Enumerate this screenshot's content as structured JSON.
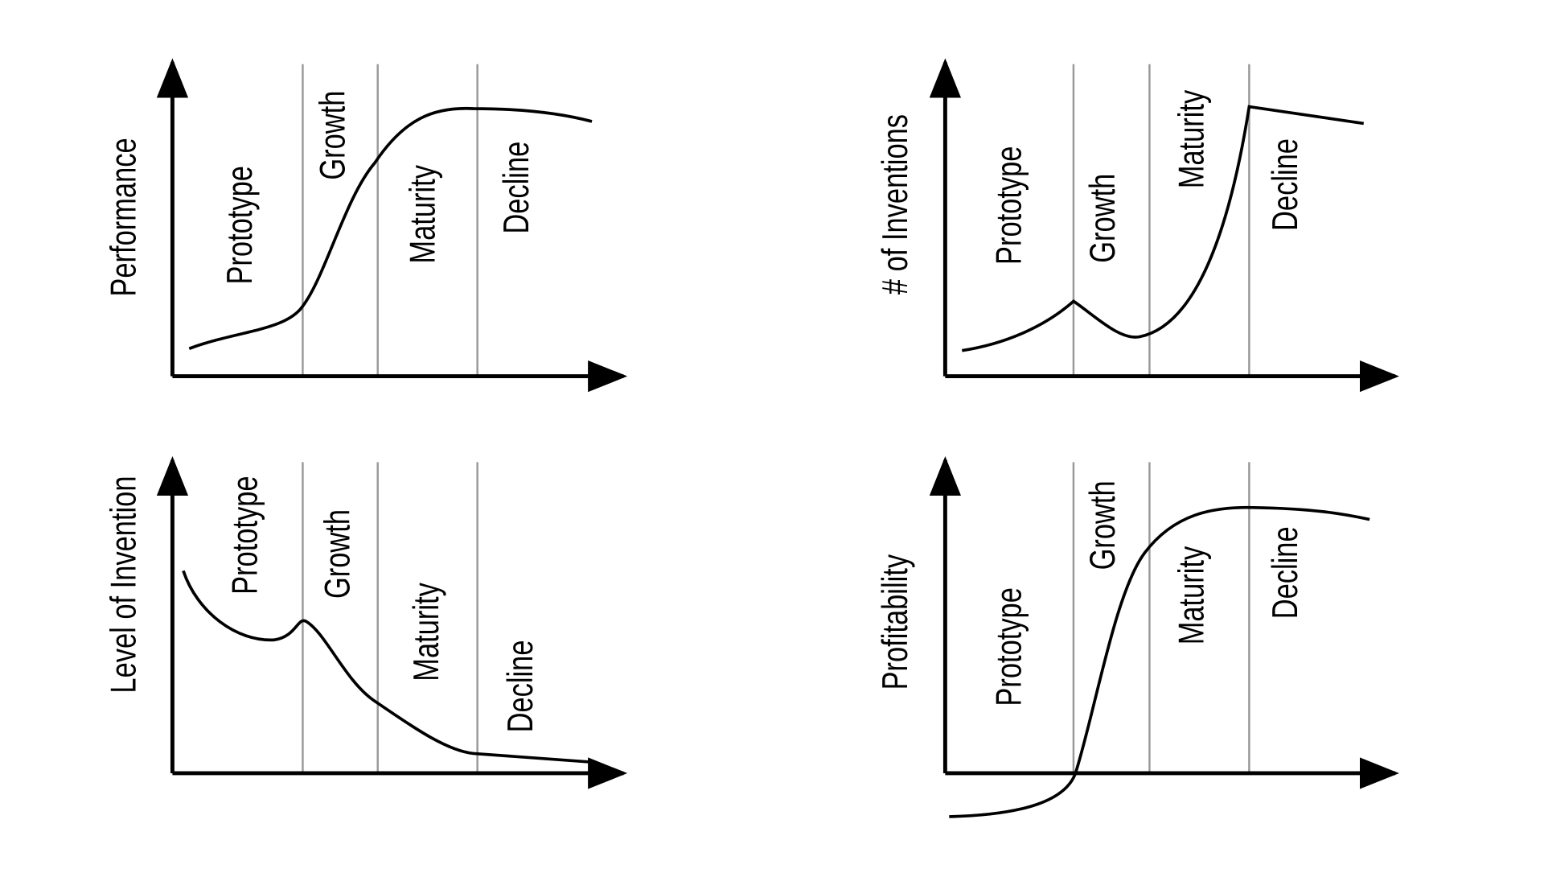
{
  "panels": [
    {
      "y_label": "Performance",
      "stages": [
        "Prototype",
        "Growth",
        "Maturity",
        "Decline"
      ]
    },
    {
      "y_label": "# of Inventions",
      "stages": [
        "Prototype",
        "Growth",
        "Maturity",
        "Decline"
      ]
    },
    {
      "y_label": "Level of Invention",
      "stages": [
        "Prototype",
        "Growth",
        "Maturity",
        "Decline"
      ]
    },
    {
      "y_label": "Profitability",
      "stages": [
        "Prototype",
        "Growth",
        "Maturity",
        "Decline"
      ]
    }
  ]
}
